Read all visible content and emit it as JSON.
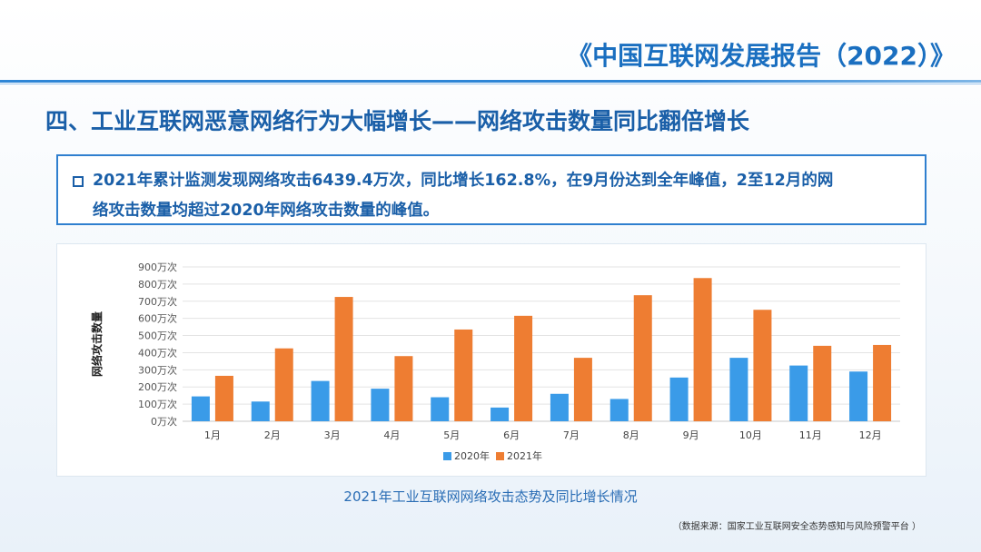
{
  "header": {
    "report_title": "《中国互联网发展报告（2022）》"
  },
  "headline": "四、工业互联网恶意网络行为大幅增长——网络攻击数量同比翻倍增长",
  "summary": {
    "line1": "2021年累计监测发现网络攻击6439.4万次，同比增长162.8%，在9月份达到全年峰值，2至12月的网",
    "line2": "络攻击数量均超过2020年网络攻击数量的峰值。"
  },
  "chart_data": {
    "type": "bar",
    "title": "",
    "ylabel": "网络攻击数量",
    "xlabel": "",
    "categories": [
      "1月",
      "2月",
      "3月",
      "4月",
      "5月",
      "6月",
      "7月",
      "8月",
      "9月",
      "10月",
      "11月",
      "12月"
    ],
    "series": [
      {
        "name": "2020年",
        "color": "#3a9be8",
        "values": [
          145,
          115,
          235,
          190,
          140,
          80,
          160,
          130,
          255,
          370,
          325,
          290
        ]
      },
      {
        "name": "2021年",
        "color": "#ee7d32",
        "values": [
          265,
          425,
          725,
          380,
          535,
          615,
          370,
          735,
          835,
          650,
          440,
          445
        ]
      }
    ],
    "ylim": [
      0,
      900
    ],
    "yticks": [
      0,
      100,
      200,
      300,
      400,
      500,
      600,
      700,
      800,
      900
    ],
    "ytick_labels": [
      "0万次",
      "100万次",
      "200万次",
      "300万次",
      "400万次",
      "500万次",
      "600万次",
      "700万次",
      "800万次",
      "900万次"
    ],
    "grid": true,
    "legend_placement": "bottom-center"
  },
  "caption": "2021年工业互联网网络攻击态势及同比增长情况",
  "source": "（数据来源：国家工业互联网安全态势感知与风险预警平台 ）"
}
